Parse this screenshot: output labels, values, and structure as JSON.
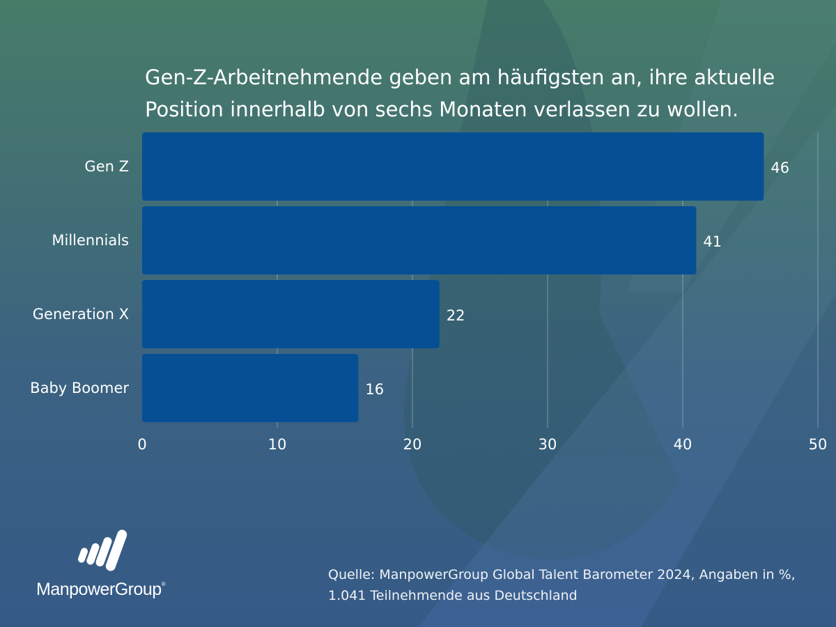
{
  "page": {
    "title": "Gen-Z-Arbeitnehmende geben am häufigsten an, ihre aktuelle Position innerhalb von sechs Monaten verlassen zu wollen.",
    "source_line1": "Quelle: ManpowerGroup Global Talent Barometer 2024, Angaben in %,",
    "source_line2": "1.041 Teilnehmende aus Deutschland",
    "logo_text": "ManpowerGroup",
    "logo_mark": "®",
    "colors": {
      "bar": "#064f95",
      "grid": "#b9c6d2",
      "text": "#ffffff"
    }
  },
  "chart_data": {
    "type": "bar",
    "orientation": "horizontal",
    "title": "Gen-Z-Arbeitnehmende geben am häufigsten an, ihre aktuelle Position innerhalb von sechs Monaten verlassen zu wollen.",
    "categories": [
      "Gen Z",
      "Millennials",
      "Generation X",
      "Baby Boomer"
    ],
    "values": [
      46,
      41,
      22,
      16
    ],
    "value_labels": [
      "46",
      "41",
      "22",
      "16"
    ],
    "xlabel": "",
    "ylabel": "",
    "xlim": [
      0,
      50
    ],
    "xticks": [
      0,
      10,
      20,
      30,
      40,
      50
    ],
    "xtick_labels": [
      "0",
      "10",
      "20",
      "30",
      "40",
      "50"
    ],
    "grid": true,
    "legend": "none",
    "unit": "%"
  }
}
